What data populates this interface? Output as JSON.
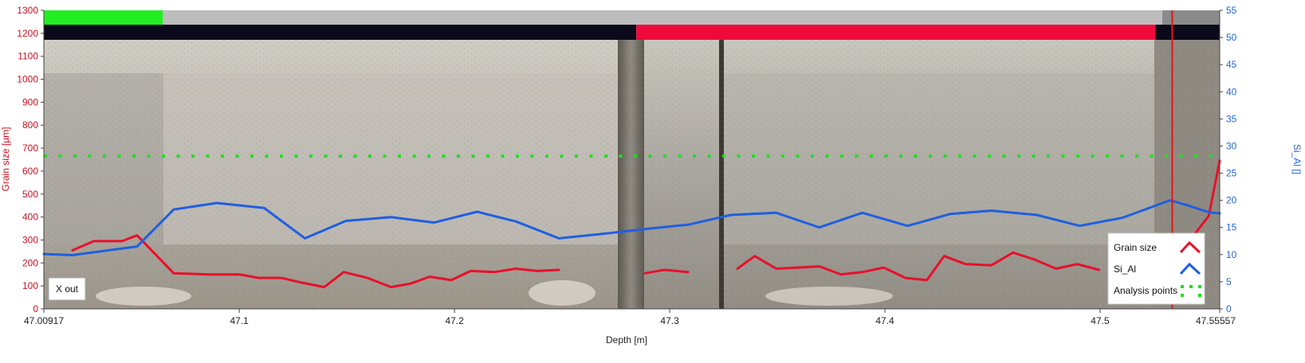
{
  "chart_data": {
    "type": "line",
    "xlabel": "Depth [m]",
    "ylabel_left": "Grain size [µm]",
    "ylabel_right": "Si_Al []",
    "xlim": [
      47.00917,
      47.55557
    ],
    "ylim_left": [
      0,
      1300
    ],
    "ylim_right": [
      0,
      55
    ],
    "x_ticks": [
      "47.00917",
      "47.1",
      "47.2",
      "47.3",
      "47.4",
      "47.5",
      "47.55557"
    ],
    "x_tick_values": [
      47.00917,
      47.1,
      47.2,
      47.3,
      47.4,
      47.5,
      47.55557
    ],
    "y_left_ticks": [
      0,
      100,
      200,
      300,
      400,
      500,
      600,
      700,
      800,
      900,
      1000,
      1100,
      1200,
      1300
    ],
    "y_right_ticks": [
      0,
      5,
      10,
      15,
      20,
      25,
      30,
      35,
      40,
      45,
      50,
      55
    ],
    "colors": {
      "grain": "#e8102a",
      "si_al": "#1f5fe0",
      "analysis": "#22dd22",
      "left_axis": "#cc1122",
      "right_axis": "#2266dd",
      "band_green": "#22ee22",
      "band_gray": "#bdbdbd",
      "band_darkgray": "#8a8a8a",
      "band_black": "#0a0a1a",
      "band_red": "#ee0a3a"
    },
    "bands_top": [
      {
        "from": 47.00917,
        "to": 47.0645,
        "color": "band_green"
      },
      {
        "from": 47.0645,
        "to": 47.5289,
        "color": "band_gray"
      },
      {
        "from": 47.5289,
        "to": 47.55557,
        "color": "band_darkgray"
      }
    ],
    "bands_bottom": [
      {
        "from": 47.00917,
        "to": 47.2845,
        "color": "band_black"
      },
      {
        "from": 47.2845,
        "to": 47.5257,
        "color": "band_red"
      },
      {
        "from": 47.5257,
        "to": 47.55557,
        "color": "band_black"
      }
    ],
    "cursor_x": 47.5335,
    "series": [
      {
        "name": "Grain size",
        "axis": "left",
        "segments": [
          [
            [
              47.0225,
              255
            ],
            [
              47.0325,
              295
            ],
            [
              47.0455,
              295
            ],
            [
              47.0525,
              320
            ],
            [
              47.0695,
              155
            ],
            [
              47.0855,
              150
            ],
            [
              47.1,
              150
            ],
            [
              47.109,
              135
            ],
            [
              47.1195,
              135
            ],
            [
              47.1285,
              115
            ],
            [
              47.1395,
              95
            ],
            [
              47.1485,
              160
            ],
            [
              47.1595,
              135
            ],
            [
              47.1705,
              95
            ],
            [
              47.1795,
              110
            ],
            [
              47.1885,
              140
            ],
            [
              47.1985,
              125
            ],
            [
              47.2075,
              165
            ],
            [
              47.2185,
              160
            ],
            [
              47.2285,
              175
            ],
            [
              47.2385,
              165
            ],
            [
              47.2485,
              170
            ]
          ],
          [
            [
              47.2885,
              155
            ],
            [
              47.2975,
              170
            ],
            [
              47.3085,
              160
            ]
          ],
          [
            [
              47.3315,
              175
            ],
            [
              47.3395,
              230
            ],
            [
              47.3495,
              175
            ],
            [
              47.3595,
              180
            ],
            [
              47.3695,
              185
            ],
            [
              47.3795,
              150
            ],
            [
              47.3895,
              160
            ],
            [
              47.3995,
              180
            ],
            [
              47.4095,
              135
            ],
            [
              47.4195,
              125
            ],
            [
              47.4275,
              230
            ],
            [
              47.4375,
              195
            ],
            [
              47.4495,
              190
            ],
            [
              47.4595,
              245
            ],
            [
              47.4695,
              215
            ],
            [
              47.4795,
              175
            ],
            [
              47.4895,
              195
            ],
            [
              47.4995,
              170
            ]
          ],
          [
            [
              47.5335,
              290
            ],
            [
              47.5435,
              320
            ],
            [
              47.5505,
              405
            ],
            [
              47.55557,
              645
            ]
          ]
        ]
      },
      {
        "name": "Si_Al",
        "axis": "right",
        "segments": [
          [
            [
              47.00917,
              10.1
            ],
            [
              47.0225,
              9.9
            ],
            [
              47.0525,
              11.5
            ],
            [
              47.0695,
              18.3
            ],
            [
              47.0895,
              19.5
            ],
            [
              47.1115,
              18.6
            ],
            [
              47.1305,
              13.0
            ],
            [
              47.1495,
              16.2
            ],
            [
              47.1705,
              16.9
            ],
            [
              47.1905,
              15.9
            ],
            [
              47.2105,
              17.9
            ],
            [
              47.2285,
              16.1
            ],
            [
              47.2485,
              13.0
            ],
            [
              47.2685,
              13.8
            ],
            [
              47.2885,
              14.7
            ],
            [
              47.3085,
              15.5
            ],
            [
              47.3285,
              17.3
            ],
            [
              47.3495,
              17.7
            ],
            [
              47.3695,
              15.0
            ],
            [
              47.3895,
              17.7
            ],
            [
              47.4105,
              15.3
            ],
            [
              47.4305,
              17.5
            ],
            [
              47.4495,
              18.1
            ],
            [
              47.4705,
              17.3
            ],
            [
              47.4905,
              15.3
            ],
            [
              47.5105,
              16.8
            ],
            [
              47.5325,
              20.0
            ],
            [
              47.5405,
              19.1
            ],
            [
              47.5505,
              17.8
            ],
            [
              47.55557,
              17.6
            ]
          ]
        ]
      },
      {
        "name": "Analysis points",
        "axis": "left",
        "style": "dotted",
        "y": 665
      }
    ],
    "annotations": [
      "X out"
    ],
    "legend": {
      "placement": "bottom-right",
      "items": [
        {
          "label": "Grain size",
          "series": "Grain size"
        },
        {
          "label": "Si_Al",
          "series": "Si_Al"
        },
        {
          "label": "Analysis points",
          "series": "Analysis points"
        }
      ]
    },
    "background": "core-photo"
  }
}
